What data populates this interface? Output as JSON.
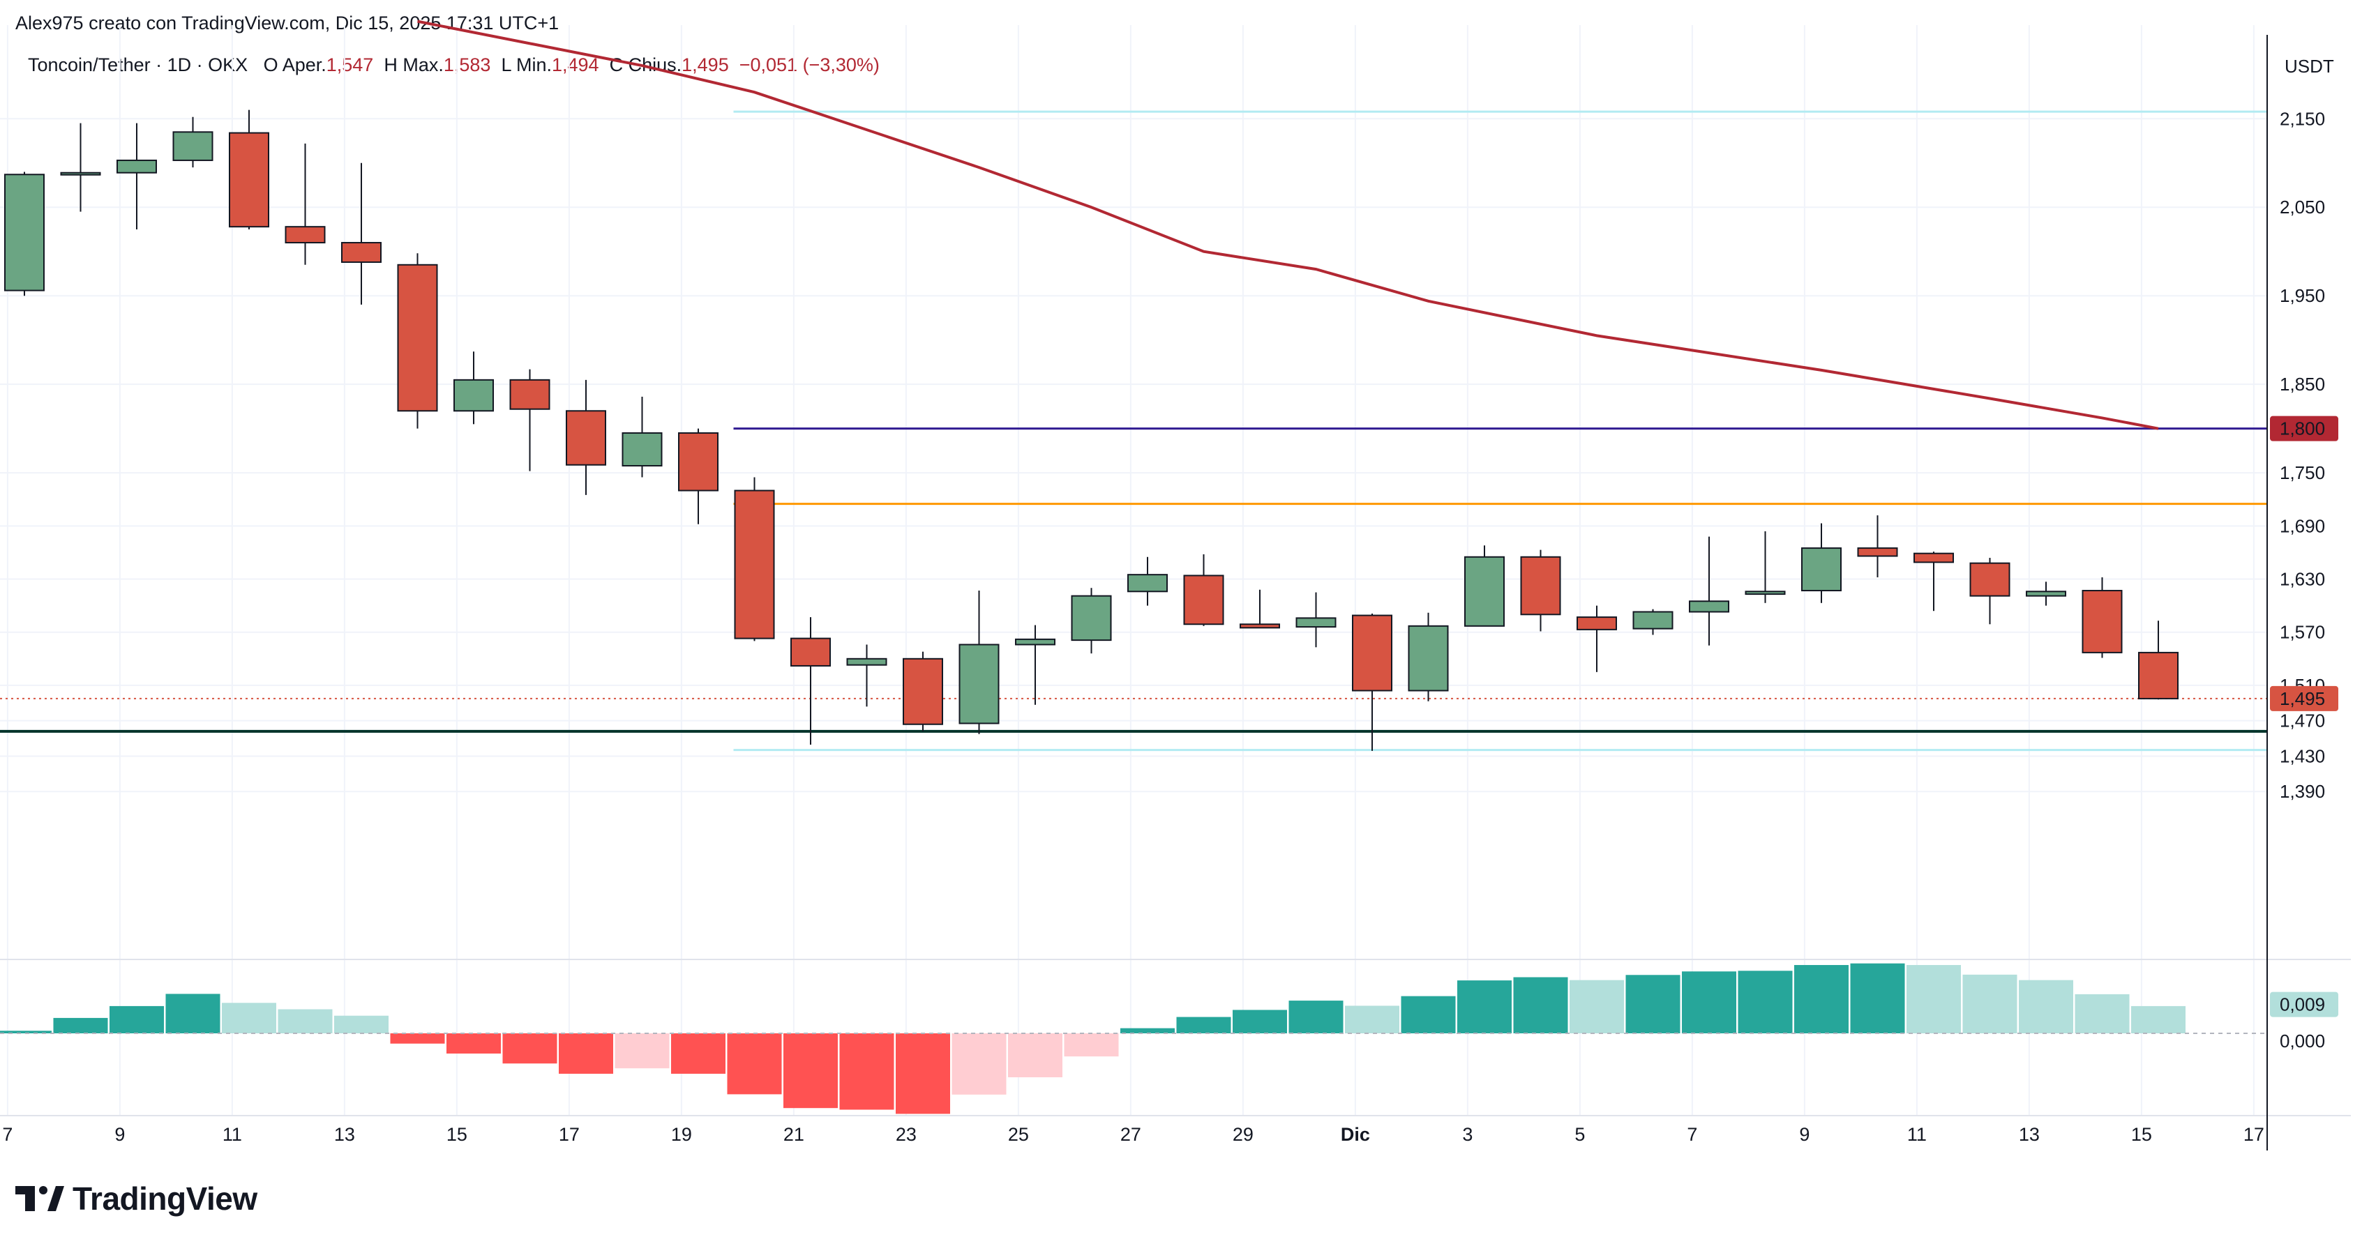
{
  "header": {
    "attribution": "Alex975 creato con TradingView.com, Dic 15, 2025 17:31 UTC+1",
    "symbol": "Toncoin/Tether · 1D · OKX",
    "open_label": "O",
    "open_prefix": "Aper.",
    "open_value": "1,547",
    "high_label": "H",
    "high_prefix": "Max.",
    "high_value": "1,583",
    "low_label": "L",
    "low_prefix": "Min.",
    "low_value": "1,494",
    "close_label": "C",
    "close_prefix": "Chius.",
    "close_value": "1,495",
    "change": "−0,051 (−3,30%)"
  },
  "footer": {
    "brand": "TradingView",
    "logo_icon": "tradingview-logo-icon"
  },
  "colors": {
    "up": "#6ba583",
    "down": "#d75442",
    "border": "#225437",
    "ema": "#b22833",
    "resistance_1800": "#311b92",
    "resistance_1715": "#ff9800",
    "support_1458": "#00332a",
    "cyan_lines": "#b2ebf2",
    "hist_up_strong": "#26a69a",
    "hist_up_weak": "#b2dfdb",
    "hist_down_strong": "#ff5252",
    "hist_down_weak": "#ffcdd2"
  },
  "chart_data": {
    "type": "candlestick",
    "currency": "USDT",
    "ylim": [
      1.35,
      2.24
    ],
    "y_ticks": [
      "2,150",
      "2,050",
      "1,950",
      "1,850",
      "1,750",
      "1,690",
      "1,630",
      "1,570",
      "1,510",
      "1,470",
      "1,430",
      "1,390"
    ],
    "x_ticks": [
      "7",
      "9",
      "11",
      "13",
      "15",
      "17",
      "19",
      "21",
      "23",
      "25",
      "27",
      "29",
      "Dic",
      "3",
      "5",
      "7",
      "9",
      "11",
      "13",
      "15",
      "17"
    ],
    "candles": [
      {
        "date": "Nov 7",
        "o": 1.956,
        "h": 2.09,
        "l": 1.95,
        "c": 2.087
      },
      {
        "date": "Nov 8",
        "o": 2.087,
        "h": 2.145,
        "l": 2.045,
        "c": 2.089
      },
      {
        "date": "Nov 9",
        "o": 2.089,
        "h": 2.145,
        "l": 2.025,
        "c": 2.103
      },
      {
        "date": "Nov 10",
        "o": 2.103,
        "h": 2.152,
        "l": 2.095,
        "c": 2.135
      },
      {
        "date": "Nov 11",
        "o": 2.134,
        "h": 2.16,
        "l": 2.025,
        "c": 2.028
      },
      {
        "date": "Nov 12",
        "o": 2.028,
        "h": 2.122,
        "l": 1.985,
        "c": 2.01
      },
      {
        "date": "Nov 13",
        "o": 2.01,
        "h": 2.1,
        "l": 1.94,
        "c": 1.988
      },
      {
        "date": "Nov 14",
        "o": 1.985,
        "h": 1.998,
        "l": 1.8,
        "c": 1.82
      },
      {
        "date": "Nov 15",
        "o": 1.82,
        "h": 1.887,
        "l": 1.805,
        "c": 1.855
      },
      {
        "date": "Nov 16",
        "o": 1.855,
        "h": 1.867,
        "l": 1.752,
        "c": 1.822
      },
      {
        "date": "Nov 17",
        "o": 1.82,
        "h": 1.855,
        "l": 1.725,
        "c": 1.759
      },
      {
        "date": "Nov 18",
        "o": 1.758,
        "h": 1.836,
        "l": 1.745,
        "c": 1.795
      },
      {
        "date": "Nov 19",
        "o": 1.795,
        "h": 1.8,
        "l": 1.692,
        "c": 1.73
      },
      {
        "date": "Nov 20",
        "o": 1.73,
        "h": 1.745,
        "l": 1.56,
        "c": 1.563
      },
      {
        "date": "Nov 21",
        "o": 1.563,
        "h": 1.587,
        "l": 1.443,
        "c": 1.532
      },
      {
        "date": "Nov 22",
        "o": 1.533,
        "h": 1.556,
        "l": 1.486,
        "c": 1.54
      },
      {
        "date": "Nov 23",
        "o": 1.54,
        "h": 1.548,
        "l": 1.458,
        "c": 1.466
      },
      {
        "date": "Nov 24",
        "o": 1.467,
        "h": 1.617,
        "l": 1.455,
        "c": 1.556
      },
      {
        "date": "Nov 25",
        "o": 1.556,
        "h": 1.578,
        "l": 1.488,
        "c": 1.562
      },
      {
        "date": "Nov 26",
        "o": 1.561,
        "h": 1.62,
        "l": 1.546,
        "c": 1.611
      },
      {
        "date": "Nov 27",
        "o": 1.616,
        "h": 1.655,
        "l": 1.6,
        "c": 1.635
      },
      {
        "date": "Nov 28",
        "o": 1.634,
        "h": 1.658,
        "l": 1.577,
        "c": 1.579
      },
      {
        "date": "Nov 29",
        "o": 1.579,
        "h": 1.618,
        "l": 1.576,
        "c": 1.575
      },
      {
        "date": "Nov 30",
        "o": 1.576,
        "h": 1.615,
        "l": 1.553,
        "c": 1.586
      },
      {
        "date": "Dic 1",
        "o": 1.589,
        "h": 1.591,
        "l": 1.436,
        "c": 1.504
      },
      {
        "date": "Dic 2",
        "o": 1.504,
        "h": 1.592,
        "l": 1.492,
        "c": 1.577
      },
      {
        "date": "Dic 3",
        "o": 1.577,
        "h": 1.668,
        "l": 1.577,
        "c": 1.655
      },
      {
        "date": "Dic 4",
        "o": 1.655,
        "h": 1.663,
        "l": 1.571,
        "c": 1.59
      },
      {
        "date": "Dic 5",
        "o": 1.587,
        "h": 1.6,
        "l": 1.525,
        "c": 1.573
      },
      {
        "date": "Dic 6",
        "o": 1.574,
        "h": 1.596,
        "l": 1.567,
        "c": 1.593
      },
      {
        "date": "Dic 7",
        "o": 1.593,
        "h": 1.678,
        "l": 1.555,
        "c": 1.605
      },
      {
        "date": "Dic 8",
        "o": 1.613,
        "h": 1.684,
        "l": 1.603,
        "c": 1.616
      },
      {
        "date": "Dic 9",
        "o": 1.617,
        "h": 1.693,
        "l": 1.603,
        "c": 1.665
      },
      {
        "date": "Dic 10",
        "o": 1.665,
        "h": 1.702,
        "l": 1.632,
        "c": 1.656
      },
      {
        "date": "Dic 11",
        "o": 1.659,
        "h": 1.661,
        "l": 1.594,
        "c": 1.649
      },
      {
        "date": "Dic 12",
        "o": 1.648,
        "h": 1.654,
        "l": 1.579,
        "c": 1.611
      },
      {
        "date": "Dic 13",
        "o": 1.611,
        "h": 1.627,
        "l": 1.6,
        "c": 1.616
      },
      {
        "date": "Dic 14",
        "o": 1.617,
        "h": 1.632,
        "l": 1.541,
        "c": 1.547
      },
      {
        "date": "Dic 15",
        "o": 1.547,
        "h": 1.583,
        "l": 1.494,
        "c": 1.495
      }
    ],
    "ema_line": [
      {
        "date": "Nov 14",
        "v": 2.26
      },
      {
        "date": "Nov 18",
        "v": 2.21
      },
      {
        "date": "Nov 20",
        "v": 2.18
      },
      {
        "date": "Nov 24",
        "v": 2.095
      },
      {
        "date": "Nov 26",
        "v": 2.05
      },
      {
        "date": "Nov 28",
        "v": 2.0
      },
      {
        "date": "Nov 30",
        "v": 1.98
      },
      {
        "date": "Dic 2",
        "v": 1.944
      },
      {
        "date": "Dic 5",
        "v": 1.905
      },
      {
        "date": "Dic 9",
        "v": 1.866
      },
      {
        "date": "Dic 12",
        "v": 1.834
      },
      {
        "date": "Dic 14",
        "v": 1.812
      },
      {
        "date": "Dic 15",
        "v": 1.8
      }
    ],
    "horizontal_lines": [
      {
        "value": 2.158,
        "color_key": "cyan_lines",
        "from": "Nov 20"
      },
      {
        "value": 1.8,
        "color_key": "resistance_1800",
        "from": "Nov 20"
      },
      {
        "value": 1.715,
        "color_key": "resistance_1715",
        "from": "Nov 20"
      },
      {
        "value": 1.458,
        "color_key": "support_1458",
        "from": "start"
      },
      {
        "value": 1.437,
        "color_key": "cyan_lines",
        "from": "Nov 20"
      }
    ],
    "price_tags": [
      {
        "label": "1,800",
        "value": 1.8,
        "color": "#b22833"
      },
      {
        "label": "1,495",
        "value": 1.495,
        "color": "#d75442"
      }
    ],
    "histogram": {
      "label": "0,009",
      "zero_label": "0,000",
      "ylim": [
        -0.024,
        0.022
      ],
      "values": [
        0.0008,
        0.0048,
        0.0085,
        0.0123,
        0.0095,
        0.0075,
        0.0055,
        -0.0032,
        -0.0063,
        -0.0094,
        -0.0126,
        -0.0109,
        -0.0126,
        -0.019,
        -0.0233,
        -0.0238,
        -0.0251,
        -0.0191,
        -0.0137,
        -0.0072,
        0.0016,
        0.0051,
        0.0073,
        0.0102,
        0.0086,
        0.0116,
        0.0165,
        0.0175,
        0.0166,
        0.0182,
        0.0193,
        0.0195,
        0.0213,
        0.0218,
        0.0213,
        0.0183,
        0.0166,
        0.0122,
        0.0085
      ]
    }
  }
}
